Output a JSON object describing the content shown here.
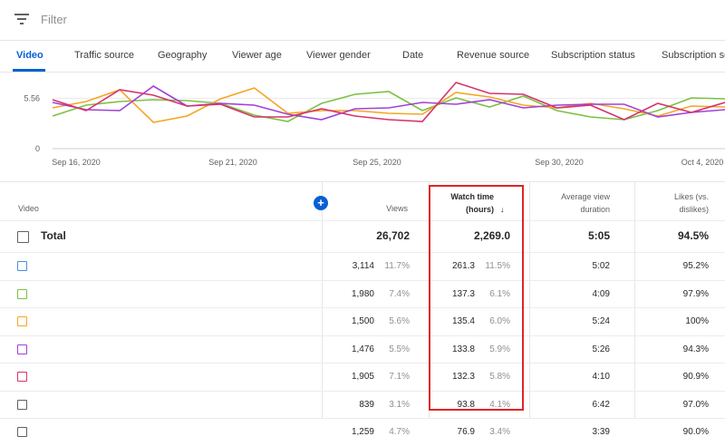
{
  "filter": {
    "placeholder": "Filter",
    "icon": "filter-icon"
  },
  "tabs": [
    "Video",
    "Traffic source",
    "Geography",
    "Viewer age",
    "Viewer gender",
    "Date",
    "Revenue source",
    "Subscription status",
    "Subscription so"
  ],
  "chart_data": {
    "type": "line",
    "y_ticks": [
      "5.56",
      "0"
    ],
    "x_ticks": [
      "Sep 16, 2020",
      "Sep 21, 2020",
      "Sep 25, 2020",
      "Sep 30, 2020",
      "Oct 4, 2020"
    ],
    "series": [
      {
        "color": "#7cc142",
        "values": [
          3.6,
          4.8,
          5.2,
          5.4,
          5.3,
          5.0,
          3.7,
          3.0,
          5.0,
          6.0,
          6.3,
          4.2,
          5.6,
          4.6,
          5.8,
          4.2,
          3.5,
          3.2,
          4.2,
          5.6,
          5.5
        ]
      },
      {
        "color": "#f4a623",
        "values": [
          4.5,
          5.2,
          6.5,
          2.9,
          3.6,
          5.5,
          6.7,
          3.9,
          4.2,
          4.2,
          3.9,
          3.8,
          6.2,
          5.7,
          4.8,
          4.5,
          5.0,
          4.4,
          3.6,
          4.7,
          4.6
        ]
      },
      {
        "color": "#a141d8",
        "values": [
          5.1,
          4.3,
          4.2,
          6.9,
          4.7,
          5.0,
          4.8,
          3.8,
          3.2,
          4.4,
          4.5,
          5.1,
          4.9,
          5.4,
          4.5,
          4.8,
          4.9,
          4.9,
          3.5,
          4.0,
          4.3
        ]
      },
      {
        "color": "#d6336c",
        "values": [
          5.4,
          4.2,
          6.5,
          5.9,
          4.7,
          4.9,
          3.5,
          3.5,
          4.4,
          3.6,
          3.2,
          3.0,
          7.3,
          6.1,
          6.0,
          4.5,
          4.8,
          3.2,
          5.0,
          4.0,
          5.1
        ]
      },
      {
        "color": "#5b9bd5",
        "values": [
          4.9,
          5.0,
          5.1,
          5.2,
          5.0,
          4.9,
          5.1,
          5.0,
          4.9,
          5.1,
          5.0,
          5.0,
          4.9,
          5.1,
          5.2,
          5.0,
          4.9,
          5.0,
          5.1,
          4.9,
          5.0
        ]
      }
    ]
  },
  "table": {
    "headers": {
      "video": "Video",
      "views": "Views",
      "watch_time_1": "Watch time",
      "watch_time_2": "(hours)",
      "sort_icon": "↓",
      "avd_1": "Average view",
      "avd_2": "duration",
      "likes_1": "Likes (vs.",
      "likes_2": "dislikes)"
    },
    "add_icon": "+",
    "total": {
      "label": "Total",
      "views": "26,702",
      "watch_time": "2,269.0",
      "avd": "5:05",
      "likes": "94.5%"
    },
    "rows": [
      {
        "color": "#4a90e2",
        "views": "3,114",
        "views_pct": "11.7%",
        "wt": "261.3",
        "wt_pct": "11.5%",
        "avd": "5:02",
        "likes": "95.2%"
      },
      {
        "color": "#7cc142",
        "views": "1,980",
        "views_pct": "7.4%",
        "wt": "137.3",
        "wt_pct": "6.1%",
        "avd": "4:09",
        "likes": "97.9%"
      },
      {
        "color": "#f4a623",
        "views": "1,500",
        "views_pct": "5.6%",
        "wt": "135.4",
        "wt_pct": "6.0%",
        "avd": "5:24",
        "likes": "100%"
      },
      {
        "color": "#a141d8",
        "views": "1,476",
        "views_pct": "5.5%",
        "wt": "133.8",
        "wt_pct": "5.9%",
        "avd": "5:26",
        "likes": "94.3%"
      },
      {
        "color": "#d6336c",
        "views": "1,905",
        "views_pct": "7.1%",
        "wt": "132.3",
        "wt_pct": "5.8%",
        "avd": "4:10",
        "likes": "90.9%"
      },
      {
        "color": "#606060",
        "views": "839",
        "views_pct": "3.1%",
        "wt": "93.8",
        "wt_pct": "4.1%",
        "avd": "6:42",
        "likes": "97.0%"
      },
      {
        "color": "#606060",
        "views": "1,259",
        "views_pct": "4.7%",
        "wt": "76.9",
        "wt_pct": "3.4%",
        "avd": "3:39",
        "likes": "90.0%"
      }
    ]
  }
}
